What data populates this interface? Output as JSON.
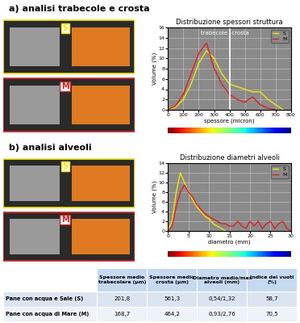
{
  "sections": [
    {
      "title": "a) analisi trabecole e crosta",
      "image_labels": [
        "S",
        "M"
      ]
    },
    {
      "title": "b) analisi alveoli",
      "image_labels": [
        "S",
        "M"
      ]
    }
  ],
  "chart_data": [
    {
      "type": "line",
      "title": "Distribuzione spessori struttura",
      "x_label": "spessore (micron)",
      "y_label": "Volume (%)",
      "x": [
        0,
        50,
        100,
        150,
        200,
        250,
        300,
        350,
        400,
        450,
        500,
        550,
        600,
        650,
        700,
        750
      ],
      "series": [
        {
          "name": "S",
          "color": "#f2e600",
          "values": [
            0,
            0.5,
            2,
            5,
            9,
            11.5,
            10,
            7,
            5,
            4.5,
            4,
            3.5,
            3.5,
            2,
            1,
            0
          ]
        },
        {
          "name": "M",
          "color": "#e02020",
          "values": [
            0,
            0.8,
            3,
            7,
            11,
            13,
            8,
            5,
            3,
            2,
            1.5,
            2.5,
            1,
            0.3,
            0,
            null
          ]
        }
      ],
      "divider_x": 400,
      "annotations": [
        "trabecole",
        "crosta"
      ],
      "xlim": [
        0,
        800
      ],
      "xticks": [
        0,
        100,
        200,
        300,
        400,
        500,
        600,
        700,
        800
      ],
      "ylim": [
        0,
        16
      ],
      "yticks": [
        0,
        2,
        4,
        6,
        8,
        10,
        12,
        14,
        16
      ],
      "grid": true,
      "legend": "upper right"
    },
    {
      "type": "line",
      "title": "Distribuzione diametri alveoli",
      "x_label": "diametro (mm)",
      "y_label": "Volume (%)",
      "x": [
        0,
        1,
        2,
        3,
        4,
        5,
        6,
        7,
        8,
        9,
        10,
        11,
        12,
        13,
        14,
        15,
        16,
        17,
        18,
        19,
        20,
        21,
        22,
        23,
        24,
        25,
        26,
        27,
        28,
        29,
        30
      ],
      "series": [
        {
          "name": "S",
          "color": "#f2e600",
          "values": [
            0,
            2,
            8,
            12,
            10,
            8,
            6.5,
            5,
            4,
            3,
            2.5,
            1.5,
            1,
            0.5,
            0,
            null,
            null,
            null,
            null,
            null,
            null,
            null,
            null,
            null,
            null,
            null,
            null,
            null,
            null,
            null,
            null
          ]
        },
        {
          "name": "M",
          "color": "#e02020",
          "values": [
            0,
            1,
            5,
            8,
            9.5,
            8,
            7,
            5.5,
            4.5,
            3.5,
            3,
            2.5,
            2,
            1.5,
            1.5,
            1,
            1,
            2,
            1,
            0.5,
            2,
            1,
            2,
            0.5,
            1.5,
            2,
            0.5,
            1.5,
            2,
            0.5,
            0
          ]
        }
      ],
      "xlim": [
        0,
        30
      ],
      "xticks": [
        0,
        5,
        10,
        15,
        20,
        25,
        30
      ],
      "ylim": [
        0,
        14
      ],
      "yticks": [
        0,
        2,
        4,
        6,
        8,
        10,
        12,
        14
      ],
      "grid": true,
      "legend": "upper right"
    }
  ],
  "table": {
    "columns": [
      "Spessore medio trabecolare (µm)",
      "Spessore medio crosta (µm)",
      "Diametro medio/max alveoli (mm)",
      "Indice dei vuoti (%)"
    ],
    "rows": [
      {
        "label": "Pane con acqua e Sale (S)",
        "cells": [
          "201,8",
          "561,3",
          "0,54/1,32",
          "58,7"
        ]
      },
      {
        "label": "Pane con acqua di Mare (M)",
        "cells": [
          "168,7",
          "464,2",
          "0,93/2,76",
          "70,5"
        ]
      }
    ]
  }
}
